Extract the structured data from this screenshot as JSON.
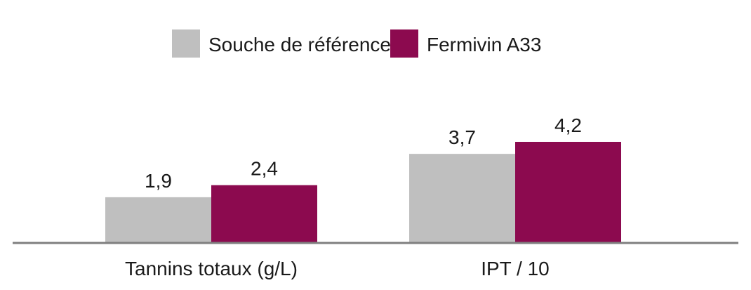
{
  "chart_data": {
    "type": "bar",
    "title": "",
    "xlabel": "",
    "ylabel": "",
    "ylim": [
      0,
      4.2
    ],
    "grid": false,
    "legend_position": "top-center",
    "categories": [
      "Tannins totaux (g/L)",
      "IPT / 10"
    ],
    "series": [
      {
        "name": "Souche de référence",
        "color": "#bfbfbf",
        "values": [
          1.9,
          3.7
        ],
        "labels": [
          "1,9",
          "3,7"
        ]
      },
      {
        "name": "Fermivin A33",
        "color": "#8c0a4f",
        "values": [
          2.4,
          4.2
        ],
        "labels": [
          "2,4",
          "4,2"
        ]
      }
    ],
    "axis_color": "#7f7f7f"
  }
}
